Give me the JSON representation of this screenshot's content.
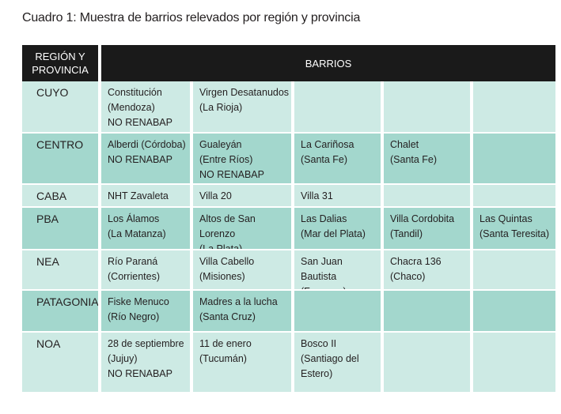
{
  "caption": "Cuadro 1: Muestra de barrios relevados por región y provincia",
  "header": {
    "region": "REGIÓN Y\nPROVINCIA",
    "barrios": "BARRIOS"
  },
  "colors": {
    "header_bg": "#1a1a1a",
    "row_light": "#cdeae4",
    "row_dark": "#a3d7cd"
  },
  "rows": [
    {
      "region": "CUYO",
      "cells": [
        "Constitución\n(Mendoza)\nNO RENABAP",
        "Virgen Desatanudos\n(La Rioja)",
        "",
        "",
        ""
      ]
    },
    {
      "region": "CENTRO",
      "cells": [
        "Alberdi (Córdoba)\nNO RENABAP",
        "Gualeyán\n(Entre Ríos)\nNO RENABAP",
        "La Cariñosa\n(Santa Fe)",
        "Chalet\n(Santa Fe)",
        ""
      ]
    },
    {
      "region": "CABA",
      "cells": [
        "NHT Zavaleta",
        "Villa 20",
        "Villa 31",
        "",
        ""
      ]
    },
    {
      "region": "PBA",
      "cells": [
        "Los Álamos\n(La Matanza)",
        "Altos de San Lorenzo\n(La Plata)",
        "Las Dalias\n(Mar del Plata)",
        "Villa Cordobita\n(Tandil)",
        "Las Quintas\n(Santa Teresita)"
      ]
    },
    {
      "region": "NEA",
      "cells": [
        "Río Paraná\n(Corrientes)",
        "Villa Cabello\n(Misiones)",
        "San Juan Bautista\n(Formosa)",
        "Chacra 136\n(Chaco)",
        ""
      ]
    },
    {
      "region": "PATAGONIA",
      "cells": [
        "Fiske Menuco\n(Río Negro)",
        "Madres a la lucha\n(Santa Cruz)",
        "",
        "",
        ""
      ]
    },
    {
      "region": "NOA",
      "cells": [
        "28 de septiembre\n(Jujuy)\nNO RENABAP",
        "11 de enero\n(Tucumán)",
        "Bosco II\n(Santiago del\nEstero)",
        "",
        ""
      ]
    }
  ]
}
